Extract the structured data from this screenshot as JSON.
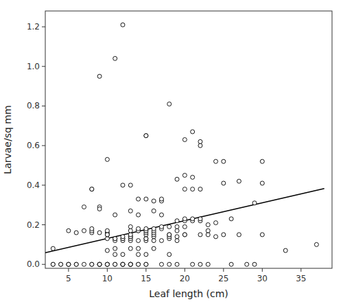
{
  "chart_data": {
    "type": "scatter",
    "xlabel": "Leaf length (cm)",
    "ylabel": "Larvae/sq mm",
    "xlim": [
      2,
      39
    ],
    "ylim": [
      -0.02,
      1.28
    ],
    "xticks": [
      5,
      10,
      15,
      20,
      25,
      30,
      35
    ],
    "yticks": [
      {
        "value": 0,
        "label": "0.0"
      },
      0.2,
      0.4,
      0.6,
      0.8,
      {
        "value": 1,
        "label": "1.0"
      },
      1.2
    ],
    "grid": false,
    "series": [
      {
        "type": "scatter",
        "marker": "open-circle",
        "color": "black",
        "x": [
          3,
          3,
          3,
          4,
          4,
          5,
          5,
          5,
          5,
          6,
          6,
          6,
          7,
          7,
          7,
          8,
          8,
          8,
          8,
          8,
          8,
          8,
          9,
          9,
          9,
          9,
          9,
          9,
          9,
          9,
          10,
          10,
          10,
          10,
          10,
          10,
          10,
          10,
          10,
          10,
          10,
          11,
          11,
          11,
          11,
          11,
          11,
          11,
          11,
          11,
          12,
          12,
          12,
          12,
          12,
          12,
          12,
          12,
          12,
          12,
          12,
          13,
          13,
          13,
          13,
          13,
          13,
          13,
          13,
          13,
          13,
          13,
          13,
          13,
          13,
          13,
          14,
          14,
          14,
          14,
          14,
          14,
          14,
          14,
          14,
          14,
          15,
          15,
          15,
          15,
          15,
          15,
          15,
          15,
          15,
          15,
          15,
          15,
          15,
          15,
          16,
          16,
          16,
          16,
          16,
          16,
          16,
          16,
          16,
          17,
          17,
          17,
          17,
          17,
          17,
          17,
          18,
          18,
          18,
          18,
          18,
          18,
          18,
          18,
          19,
          19,
          19,
          19,
          19,
          19,
          19,
          20,
          20,
          20,
          20,
          20,
          20,
          20,
          20,
          21,
          21,
          21,
          21,
          21,
          21,
          22,
          22,
          22,
          22,
          22,
          22,
          22,
          23,
          23,
          23,
          23,
          24,
          24,
          24,
          25,
          25,
          25,
          26,
          26,
          27,
          27,
          28,
          29,
          29,
          30,
          30,
          30,
          33,
          37
        ],
        "values": [
          0.0,
          0.0,
          0.08,
          0.0,
          0.0,
          0.0,
          0.0,
          0.0,
          0.17,
          0.0,
          0.0,
          0.16,
          0.0,
          0.17,
          0.29,
          0.0,
          0.0,
          0.16,
          0.17,
          0.18,
          0.38,
          0.38,
          0.0,
          0.0,
          0.0,
          0.0,
          0.29,
          0.28,
          0.95,
          0.16,
          0.0,
          0.0,
          0.0,
          0.0,
          0.07,
          0.13,
          0.15,
          0.16,
          0.17,
          0.53,
          0.15,
          0.0,
          0.0,
          0.05,
          0.08,
          0.12,
          0.13,
          0.25,
          1.04,
          0.13,
          0.0,
          0.0,
          0.0,
          0.0,
          0.05,
          0.12,
          0.13,
          0.13,
          0.14,
          1.21,
          0.4,
          0.0,
          0.0,
          0.0,
          0.0,
          0.08,
          0.12,
          0.13,
          0.14,
          0.14,
          0.4,
          0.15,
          0.17,
          0.19,
          0.27,
          0.0,
          0.0,
          0.05,
          0.08,
          0.12,
          0.17,
          0.17,
          0.18,
          0.25,
          0.33,
          0.0,
          0.0,
          0.05,
          0.12,
          0.13,
          0.13,
          0.15,
          0.16,
          0.17,
          0.17,
          0.18,
          0.33,
          0.65,
          0.65,
          0.0,
          0.12,
          0.14,
          0.15,
          0.16,
          0.17,
          0.18,
          0.27,
          0.32,
          0.08,
          0.12,
          0.18,
          0.19,
          0.25,
          0.32,
          0.33,
          0.0,
          0.05,
          0.13,
          0.14,
          0.15,
          0.15,
          0.19,
          0.81,
          0.0,
          0.12,
          0.14,
          0.17,
          0.19,
          0.22,
          0.43,
          0.0,
          0.15,
          0.19,
          0.22,
          0.23,
          0.38,
          0.45,
          0.63,
          0.15,
          0.22,
          0.23,
          0.38,
          0.44,
          0.67,
          0.0,
          0.15,
          0.22,
          0.23,
          0.38,
          0.6,
          0.62,
          0.0,
          0.0,
          0.15,
          0.2,
          0.17,
          0.21,
          0.52,
          0.14,
          0.41,
          0.52,
          0.15,
          0.23,
          0.0,
          0.15,
          0.42,
          0.0,
          0.31,
          0.0,
          0.15,
          0.52,
          0.41,
          0.07,
          0.1
        ]
      },
      {
        "type": "line",
        "color": "black",
        "x": [
          2,
          38
        ],
        "values": [
          0.059,
          0.383
        ]
      }
    ]
  }
}
